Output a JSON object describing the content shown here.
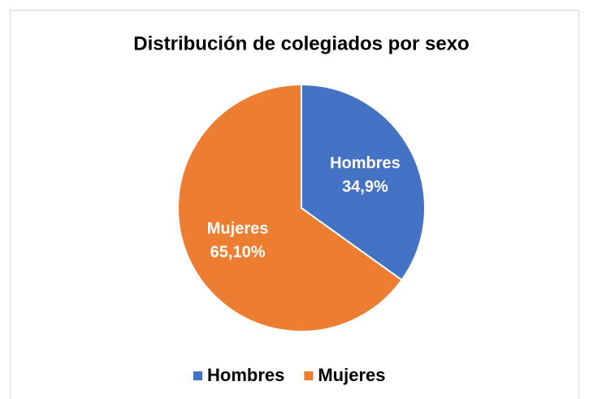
{
  "chart_data": {
    "type": "pie",
    "title": "Distribución de colegiados por sexo",
    "categories": [
      "Hombres",
      "Mujeres"
    ],
    "values": [
      34.9,
      65.1
    ],
    "value_labels": [
      "34,9%",
      "65,10%"
    ],
    "colors": [
      "#4472c4",
      "#ed7d31"
    ],
    "legend": "bottom"
  }
}
